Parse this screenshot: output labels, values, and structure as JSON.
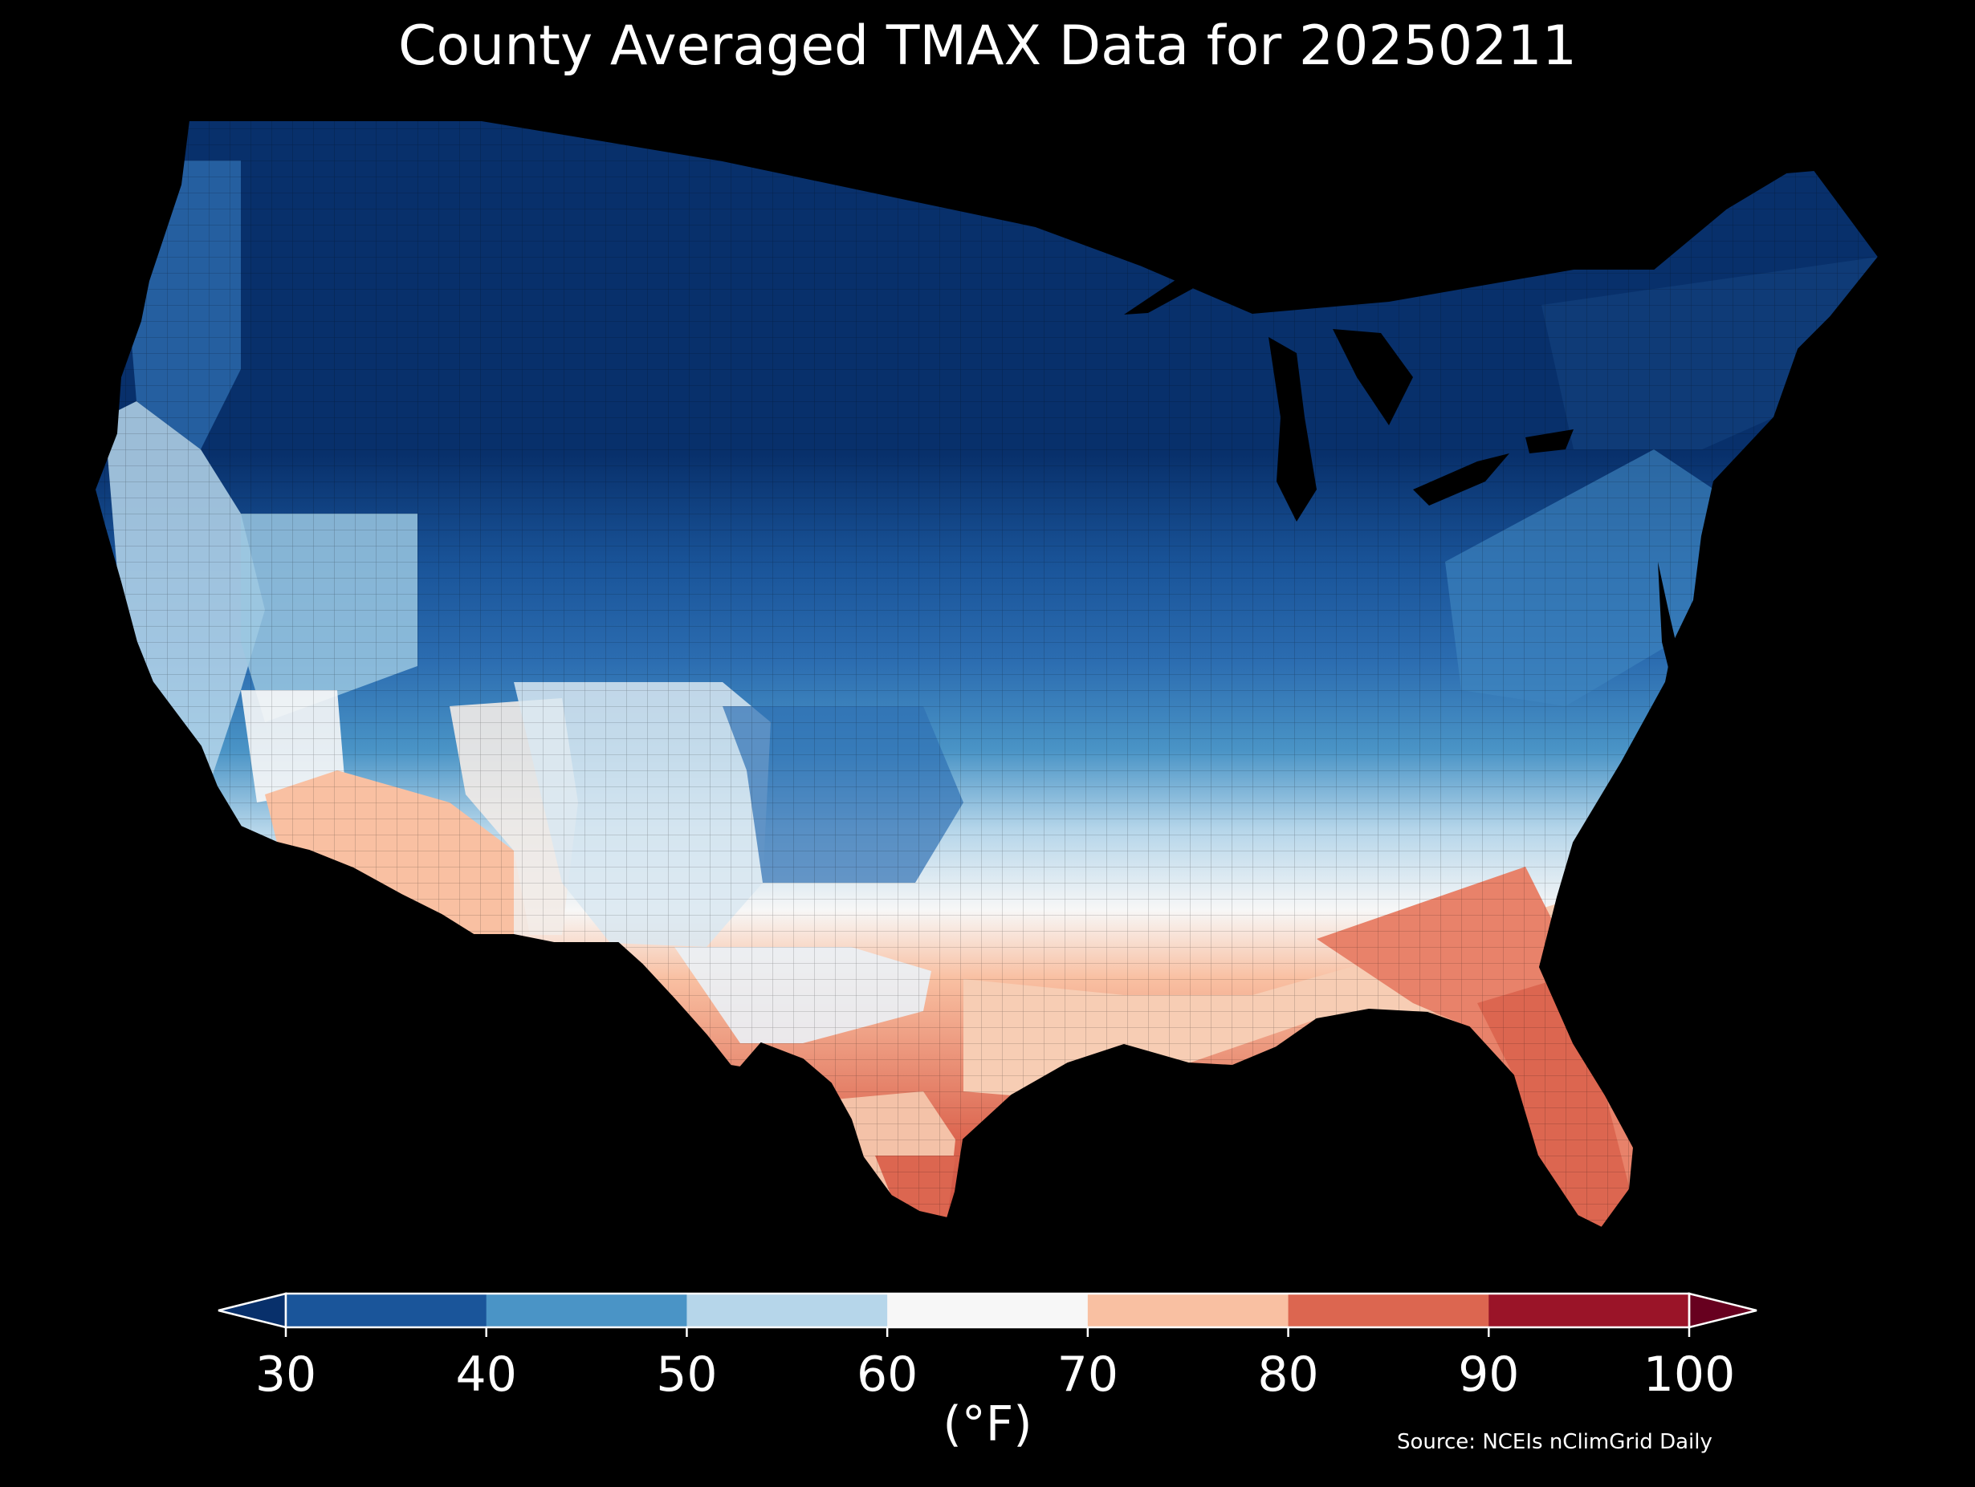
{
  "title": "County Averaged TMAX Data for 20250211",
  "map": {
    "region": "Contiguous United States counties",
    "variable": "TMAX",
    "date": "20250211",
    "pattern": [
      {
        "area": "Northern Plains / Upper Midwest / Northern Rockies",
        "bin": "below 30"
      },
      {
        "area": "Pacific Northwest / Northeast",
        "bin": "30-40"
      },
      {
        "area": "Central Plains / Ohio Valley / Mid-Atlantic",
        "bin": "40-50"
      },
      {
        "area": "California / Great Basin / Texas Panhandle",
        "bin": "50-60"
      },
      {
        "area": "Desert Southwest / Central Texas / Deep South",
        "bin": "60-70"
      },
      {
        "area": "Southern Arizona / Gulf Coast",
        "bin": "70-80"
      },
      {
        "area": "Florida / South Texas",
        "bin": "80-90"
      }
    ]
  },
  "colorbar": {
    "unit": "(°F)",
    "ticks": [
      "30",
      "40",
      "50",
      "60",
      "70",
      "80",
      "90",
      "100"
    ],
    "colors": [
      "#08306b",
      "#1a559a",
      "#4a94c6",
      "#b6d6ea",
      "#f7f7f7",
      "#f9c0a2",
      "#dc6650",
      "#9a1428",
      "#67001f"
    ],
    "extend": "both"
  },
  "source": "Source: NCEIs nClimGrid Daily"
}
